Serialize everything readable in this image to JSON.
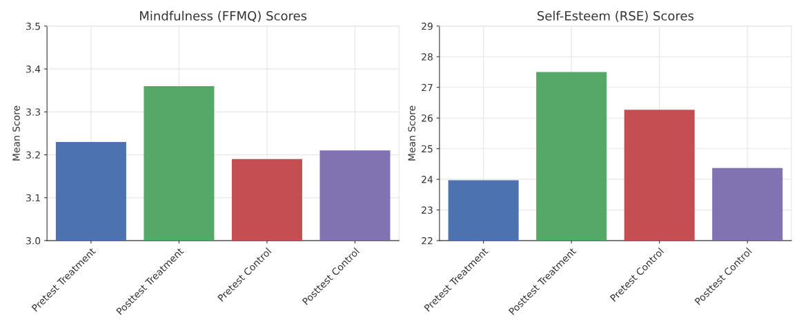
{
  "chart_data": [
    {
      "type": "bar",
      "title": "Mindfulness (FFMQ) Scores",
      "ylabel": "Mean Score",
      "categories": [
        "Pretest Treatment",
        "Posttest Treatment",
        "Pretest Control",
        "Posttest Control"
      ],
      "values": [
        3.23,
        3.36,
        3.19,
        3.21
      ],
      "colors": [
        "#4c72b0",
        "#55a868",
        "#c44e52",
        "#8172b2"
      ],
      "ylim": [
        3.0,
        3.5
      ],
      "yticks": [
        {
          "value": 3.0,
          "label": "3.0"
        },
        {
          "value": 3.1,
          "label": "3.1"
        },
        {
          "value": 3.2,
          "label": "3.2"
        },
        {
          "value": 3.3,
          "label": "3.3"
        },
        {
          "value": 3.4,
          "label": "3.4"
        },
        {
          "value": 3.5,
          "label": "3.5"
        }
      ],
      "grid": true
    },
    {
      "type": "bar",
      "title": "Self-Esteem (RSE) Scores",
      "ylabel": "Mean Score",
      "categories": [
        "Pretest Treatment",
        "Posttest Treatment",
        "Pretest Control",
        "Posttest Control"
      ],
      "values": [
        23.97,
        27.5,
        26.27,
        24.37
      ],
      "colors": [
        "#4c72b0",
        "#55a868",
        "#c44e52",
        "#8172b2"
      ],
      "ylim": [
        22,
        29
      ],
      "yticks": [
        22,
        23,
        24,
        25,
        26,
        27,
        28,
        29
      ],
      "grid": true
    }
  ]
}
